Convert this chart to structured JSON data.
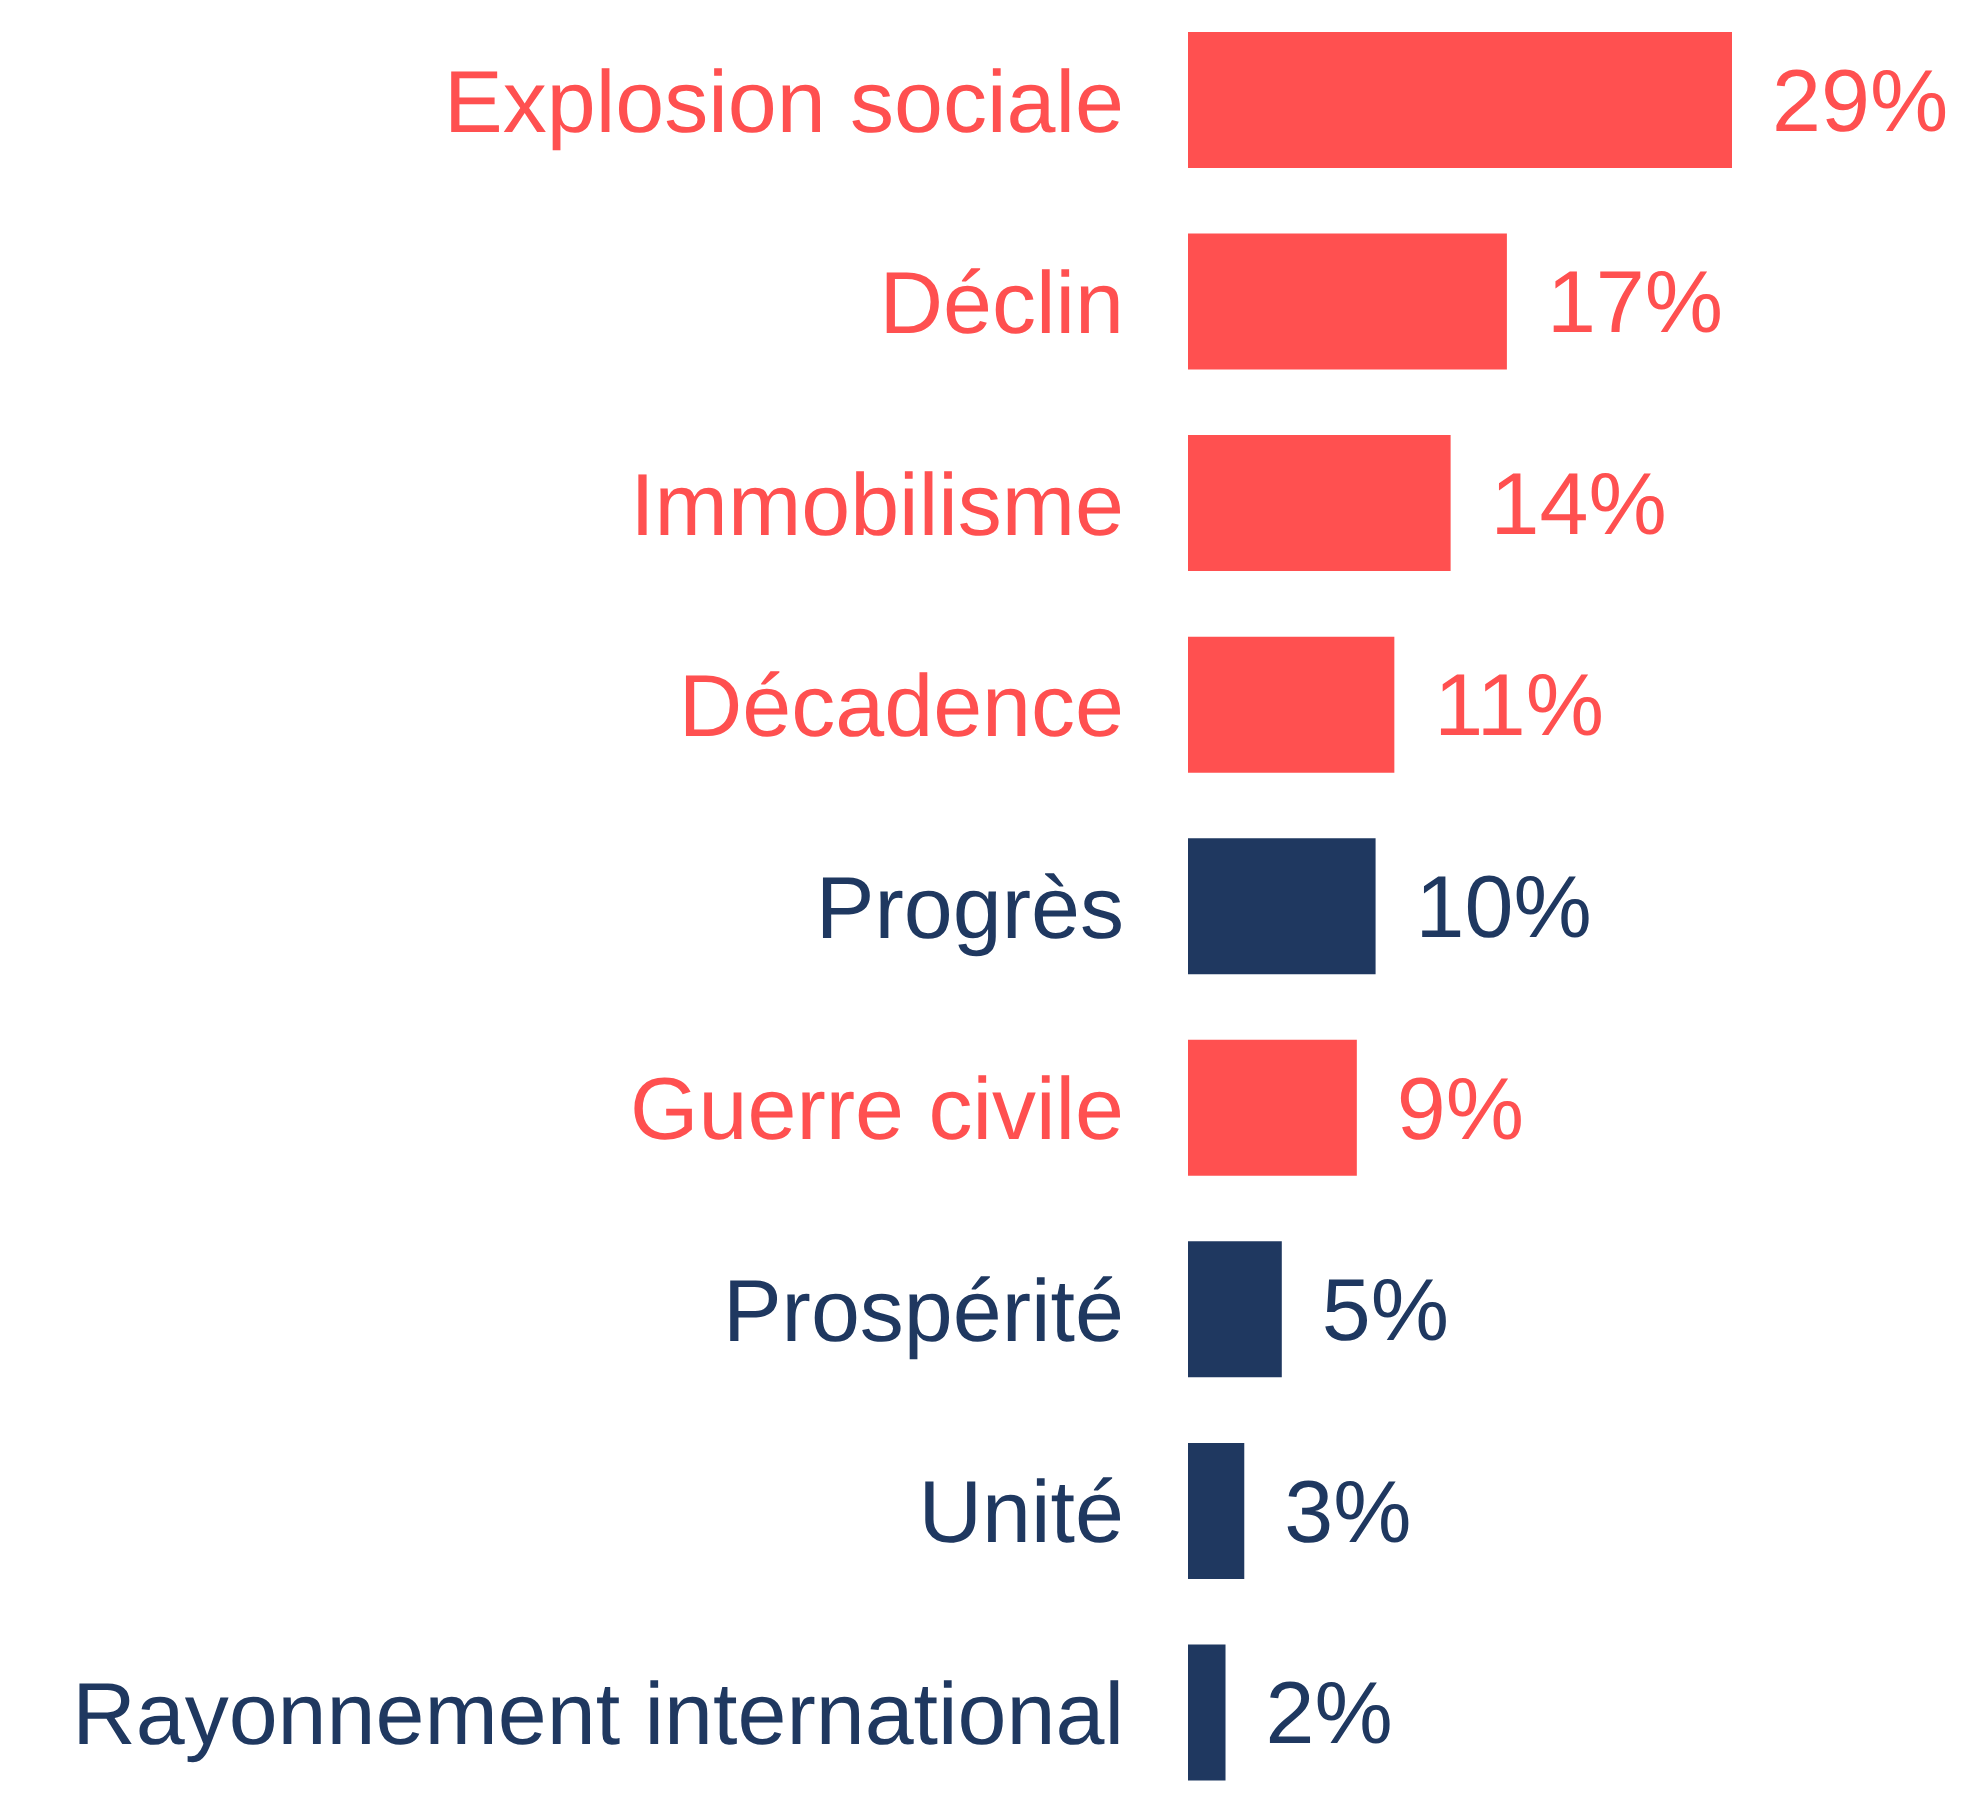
{
  "chart_data": {
    "type": "bar",
    "orientation": "horizontal",
    "categories": [
      "Explosion sociale",
      "Déclin",
      "Immobilisme",
      "Décadence",
      "Progrès",
      "Guerre civile",
      "Prospérité",
      "Unité",
      "Rayonnement international"
    ],
    "values": [
      29,
      17,
      14,
      11,
      10,
      9,
      5,
      3,
      2
    ],
    "colors": [
      "#ff5050",
      "#ff5050",
      "#ff5050",
      "#ff5050",
      "#1f3860",
      "#ff5050",
      "#1f3860",
      "#1f3860",
      "#1f3860"
    ],
    "value_labels": [
      "29%",
      "17%",
      "14%",
      "11%",
      "10%",
      "9%",
      "5%",
      "3%",
      "2%"
    ],
    "tick_labels": "y",
    "grid": false,
    "legend": false
  }
}
